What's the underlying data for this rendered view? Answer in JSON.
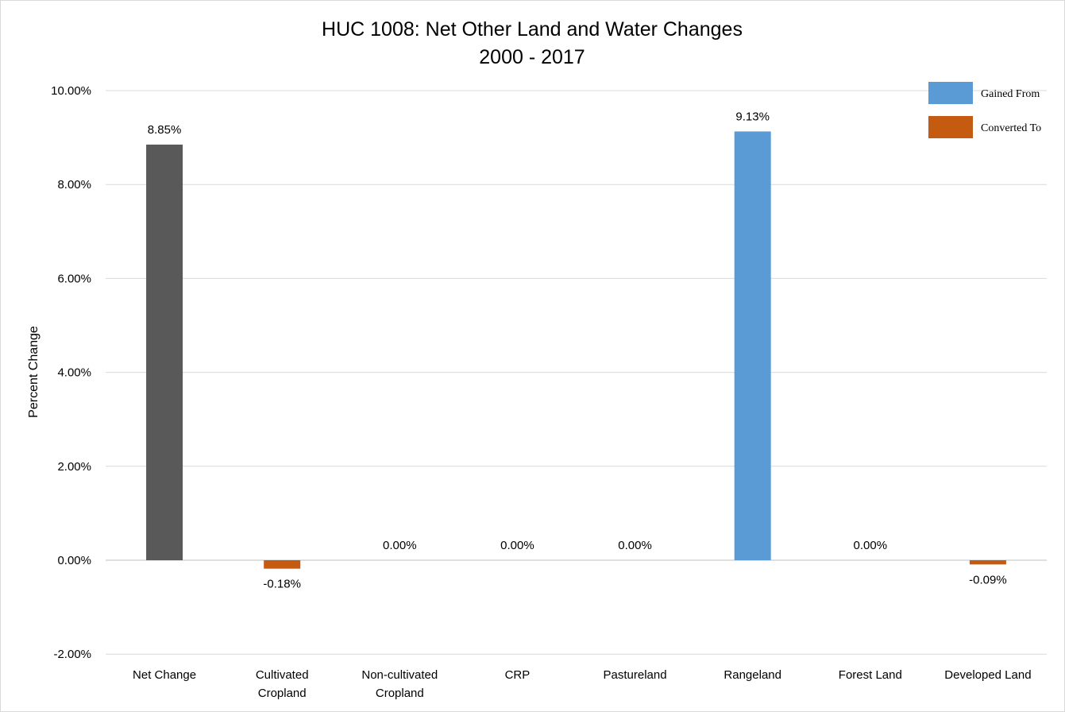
{
  "chart_data": {
    "type": "bar",
    "title_lines": [
      "HUC 1008: Net Other Land and Water Changes",
      "2000 - 2017"
    ],
    "ylabel": "Percent Change",
    "xlabel": "",
    "ylim": [
      -2,
      10
    ],
    "yticks": [
      -2,
      0,
      2,
      4,
      6,
      8,
      10
    ],
    "ytick_labels": [
      "-2.00%",
      "0.00%",
      "2.00%",
      "4.00%",
      "6.00%",
      "8.00%",
      "10.00%"
    ],
    "grid": true,
    "legend_position": "top-right",
    "categories": [
      [
        "Net Change"
      ],
      [
        "Cultivated",
        "Cropland"
      ],
      [
        "Non-cultivated",
        "Cropland"
      ],
      [
        "CRP"
      ],
      [
        "Pastureland"
      ],
      [
        "Rangeland"
      ],
      [
        "Forest Land"
      ],
      [
        "Developed Land"
      ]
    ],
    "values": [
      8.85,
      -0.18,
      0.0,
      0.0,
      0.0,
      9.13,
      0.0,
      -0.09
    ],
    "data_labels": [
      "8.85%",
      "-0.18%",
      "0.00%",
      "0.00%",
      "0.00%",
      "9.13%",
      "0.00%",
      "-0.09%"
    ],
    "bar_colors": [
      "#595959",
      "#c55a11",
      "#5b9bd5",
      "#5b9bd5",
      "#5b9bd5",
      "#5b9bd5",
      "#5b9bd5",
      "#c55a11"
    ],
    "legend": [
      {
        "name": "Gained From",
        "color": "#5b9bd5"
      },
      {
        "name": "Converted To",
        "color": "#c55a11"
      }
    ],
    "colors": {
      "net": "#595959",
      "gained": "#5b9bd5",
      "converted": "#c55a11",
      "grid": "#d9d9d9"
    }
  }
}
